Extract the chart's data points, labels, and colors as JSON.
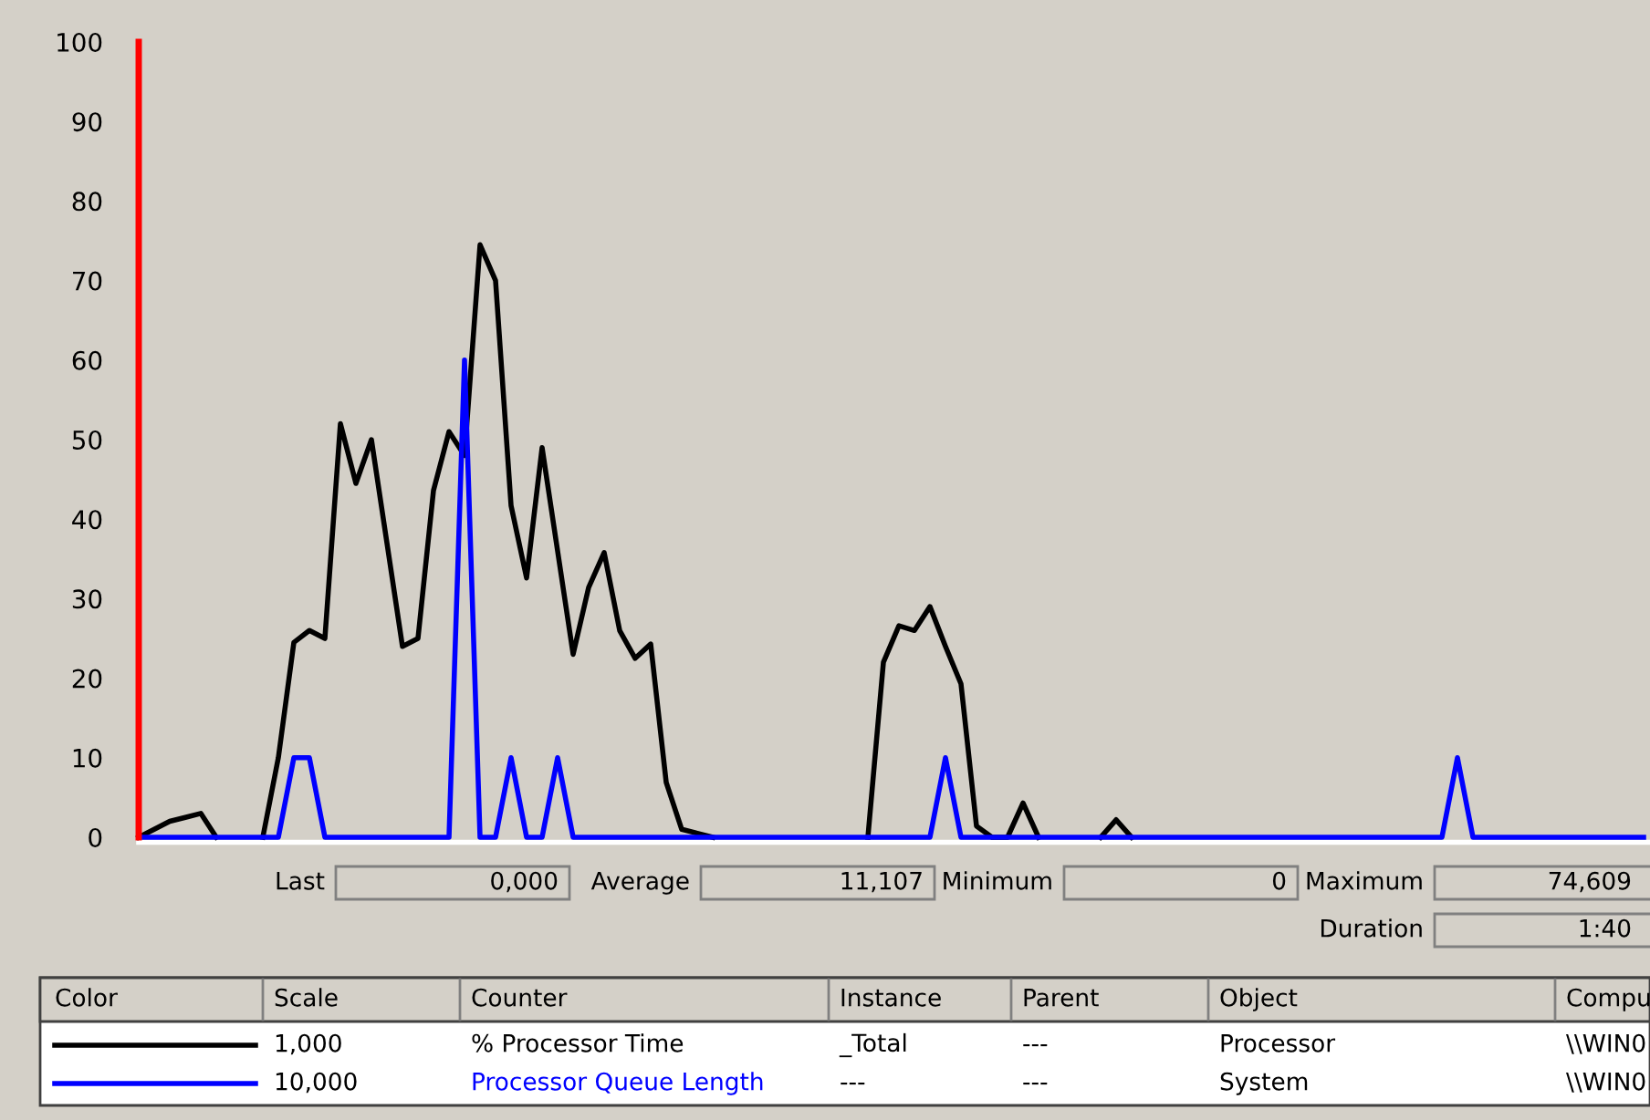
{
  "chart_data": {
    "type": "line",
    "categories": [
      null,
      null,
      null,
      null,
      null,
      null,
      null,
      null,
      null,
      null,
      null,
      null,
      null,
      null,
      null,
      null,
      null,
      null,
      null,
      null,
      null,
      null,
      null,
      null,
      null,
      null,
      null,
      null,
      null,
      null,
      null,
      null,
      null,
      null,
      null,
      null,
      null,
      null,
      null,
      null,
      null,
      null,
      null,
      null,
      null,
      null,
      null,
      null,
      null,
      null,
      null,
      null,
      null,
      null,
      null,
      null,
      null,
      null,
      null,
      null,
      null,
      null,
      null,
      null,
      null,
      null,
      null,
      null,
      null,
      null,
      null,
      null,
      null,
      null,
      null,
      null,
      null,
      null,
      null,
      null,
      null,
      null,
      null,
      null,
      null,
      null,
      null,
      null,
      null,
      null,
      null,
      null,
      null,
      null,
      null,
      null,
      null,
      null
    ],
    "series": [
      {
        "name": "% Processor Time",
        "color": "#000000",
        "values": [
          0,
          1,
          2,
          2.5,
          3,
          0,
          null,
          null,
          0,
          10,
          24.5,
          26,
          25,
          52,
          44.5,
          50,
          37,
          24,
          25,
          43.6,
          51,
          48,
          74.5,
          70,
          41.7,
          32.6,
          49,
          36,
          23,
          31.4,
          35.8,
          26,
          22.5,
          24.3,
          6.9,
          1,
          0.5,
          0,
          null,
          null,
          null,
          null,
          null,
          null,
          null,
          null,
          null,
          0,
          22,
          26.6,
          26,
          29,
          24,
          19.3,
          1.4,
          0,
          0,
          4.3,
          0,
          null,
          null,
          null,
          0,
          2.2,
          0,
          null,
          null,
          null,
          null,
          null,
          null,
          null,
          null,
          null,
          null,
          null,
          null,
          null,
          null,
          null,
          null,
          null,
          null,
          null,
          null,
          null,
          null,
          null,
          null,
          null,
          null,
          null,
          null,
          null,
          null,
          null,
          null,
          null
        ]
      },
      {
        "name": "Processor Queue Length",
        "color": "#0000ff",
        "values": [
          0,
          0,
          0,
          0,
          0,
          0,
          0,
          0,
          0,
          0,
          10,
          10,
          0,
          0,
          0,
          0,
          0,
          0,
          0,
          0,
          0,
          60,
          0,
          0,
          10,
          0,
          0,
          10,
          0,
          0,
          0,
          0,
          0,
          0,
          0,
          0,
          0,
          0,
          0,
          0,
          0,
          0,
          0,
          0,
          0,
          0,
          0,
          0,
          0,
          0,
          0,
          0,
          10,
          0,
          0,
          0,
          0,
          0,
          0,
          0,
          0,
          0,
          0,
          0,
          0,
          0,
          0,
          0,
          0,
          0,
          0,
          0,
          0,
          0,
          0,
          0,
          0,
          0,
          0,
          0,
          0,
          0,
          0,
          0,
          0,
          10,
          0,
          0,
          0,
          0,
          0,
          0,
          0,
          0,
          0,
          0,
          0,
          0
        ]
      }
    ],
    "ylim": [
      0,
      100
    ],
    "yticks": [
      0,
      10,
      20,
      30,
      40,
      50,
      60,
      70,
      80,
      90,
      100
    ],
    "grid": false,
    "tick_labels": "y",
    "marker": "none",
    "line_style": "solid",
    "annotations": [
      "Last",
      "0,000",
      "Average",
      "11,107",
      "Minimum",
      "0",
      "Maximum",
      "74,609",
      "Duration",
      "1:40",
      "Color",
      "Scale",
      "Counter",
      "Instance",
      "Parent",
      "Object",
      "Compu",
      "1,000",
      "_Total",
      "---",
      "Processor",
      "\\\\WIN0",
      "10,000",
      "---",
      "---",
      "System",
      "\\\\WIN0"
    ]
  }
}
